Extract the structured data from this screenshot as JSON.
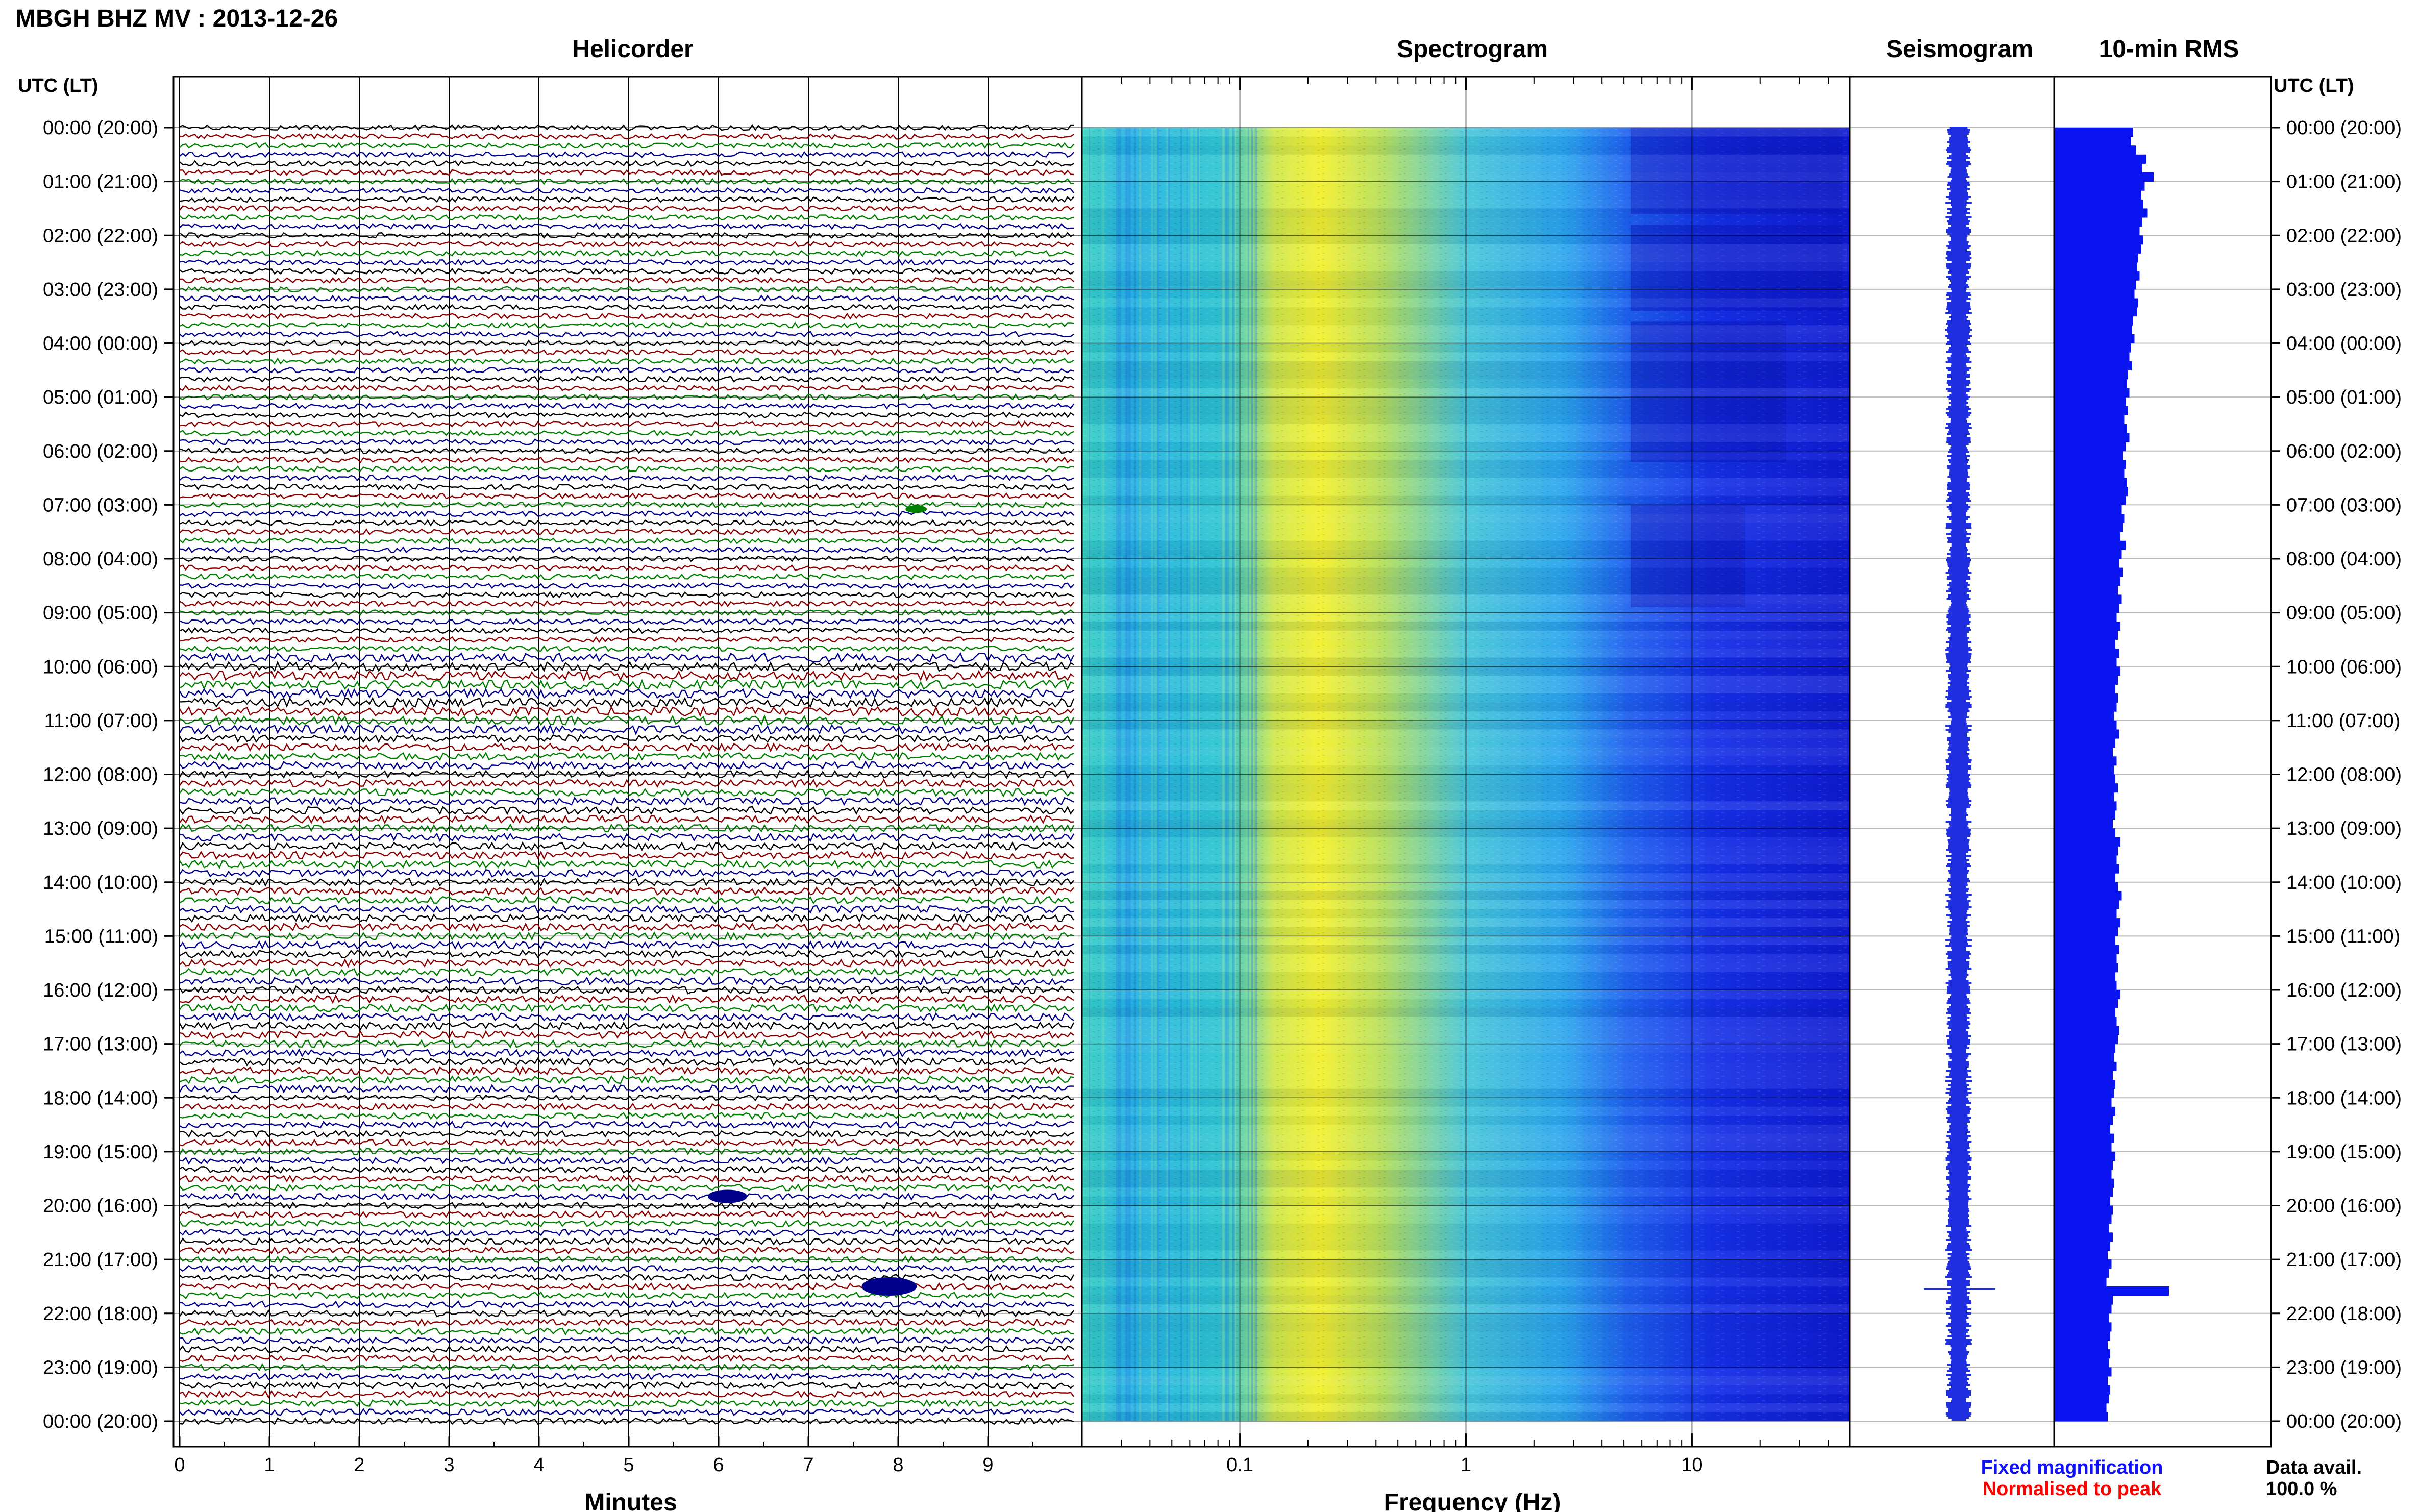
{
  "title": "MBGH BHZ MV : 2013-12-26",
  "header_left": "UTC (LT)",
  "header_right": "UTC (LT)",
  "panels": {
    "helicorder": "Helicorder",
    "spectrogram": "Spectrogram",
    "seismogram": "Seismogram",
    "rms": "10-min RMS"
  },
  "time_labels": [
    "00:00 (20:00)",
    "01:00 (21:00)",
    "02:00 (22:00)",
    "03:00 (23:00)",
    "04:00 (00:00)",
    "05:00 (01:00)",
    "06:00 (02:00)",
    "07:00 (03:00)",
    "08:00 (04:00)",
    "09:00 (05:00)",
    "10:00 (06:00)",
    "11:00 (07:00)",
    "12:00 (08:00)",
    "13:00 (09:00)",
    "14:00 (10:00)",
    "15:00 (11:00)",
    "16:00 (12:00)",
    "17:00 (13:00)",
    "18:00 (14:00)",
    "19:00 (15:00)",
    "20:00 (16:00)",
    "21:00 (17:00)",
    "22:00 (18:00)",
    "23:00 (19:00)",
    "00:00 (20:00)"
  ],
  "footer": {
    "fixed": "Fixed magnification",
    "normalised": "Normalised to peak",
    "avail_label": "Data avail.",
    "avail_value": "100.0 %"
  },
  "colors": {
    "trace_cycle": [
      "#000000",
      "#8b0000",
      "#008000",
      "#00008b"
    ],
    "seismogram": "#1f2fe0",
    "rms": "#0a14f0",
    "fixed_text": "#1010ff",
    "normalised_text": "#ff0000"
  },
  "chart_data": {
    "type": "multi-panel seismic",
    "helicorder": {
      "type": "line",
      "xlabel": "Minutes",
      "xticks": [
        0,
        1,
        2,
        3,
        4,
        5,
        6,
        7,
        8,
        9
      ],
      "xlim": [
        0,
        10
      ],
      "lines_per_hour": 6,
      "events": [
        {
          "hour_offset": 7.08,
          "minute": 8.2,
          "color": "#008000",
          "scale": 0.5
        },
        {
          "hour_offset": 19.83,
          "minute": 6.1,
          "color": "#00008b",
          "scale": 1.3
        },
        {
          "hour_offset": 21.5,
          "minute": 7.9,
          "color": "#00008b",
          "scale": 2.0
        }
      ]
    },
    "spectrogram": {
      "type": "heatmap",
      "xlabel": "Frequency (Hz)",
      "xscale": "log",
      "xtick_labels": [
        "0.1",
        "1",
        "10"
      ],
      "xlim": [
        0.02,
        50
      ]
    },
    "rms_10min": {
      "type": "bar",
      "values": [
        6.2,
        6.0,
        6.4,
        7.2,
        6.9,
        7.8,
        7.1,
        6.8,
        7.0,
        7.3,
        6.9,
        6.7,
        7.0,
        6.8,
        6.6,
        6.5,
        6.7,
        6.4,
        6.3,
        6.6,
        6.5,
        6.2,
        6.1,
        6.3,
        6.0,
        5.9,
        6.1,
        5.8,
        5.7,
        5.9,
        5.6,
        5.8,
        5.5,
        5.7,
        5.9,
        5.6,
        5.4,
        5.6,
        5.5,
        5.7,
        5.8,
        5.6,
        5.3,
        5.5,
        5.4,
        5.2,
        5.6,
        5.3,
        5.1,
        5.4,
        5.2,
        5.0,
        5.3,
        5.1,
        4.9,
        5.2,
        5.0,
        4.8,
        5.1,
        4.9,
        5.2,
        5.0,
        4.8,
        5.0,
        4.9,
        4.7,
        4.9,
        5.1,
        4.8,
        4.6,
        4.9,
        4.7,
        4.8,
        5.0,
        4.7,
        4.9,
        4.8,
        4.6,
        4.8,
        5.2,
        5.0,
        4.9,
        5.1,
        4.8,
        5.0,
        5.3,
        5.1,
        4.9,
        5.2,
        5.0,
        4.8,
        5.1,
        4.9,
        5.0,
        4.8,
        4.9,
        5.2,
        5.0,
        4.8,
        4.9,
        5.1,
        5.0,
        4.8,
        4.7,
        4.9,
        4.6,
        4.8,
        4.7,
        4.5,
        4.8,
        4.6,
        4.4,
        4.7,
        4.5,
        4.8,
        4.6,
        4.5,
        4.7,
        4.6,
        4.4,
        4.6,
        4.5,
        4.3,
        4.6,
        4.4,
        4.2,
        4.5,
        4.3,
        4.1,
        4.4,
        4.6,
        4.5,
        4.3,
        4.5,
        4.4,
        4.2,
        4.4,
        4.3,
        4.5,
        4.2,
        4.4,
        4.3,
        4.1,
        4.2
      ]
    }
  }
}
